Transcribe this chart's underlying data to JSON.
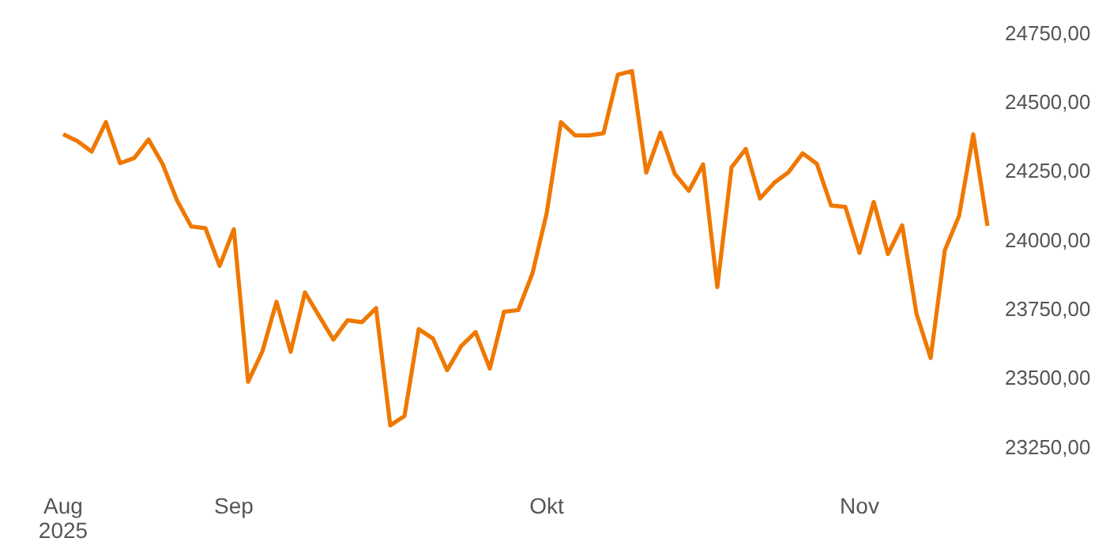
{
  "chart_data": {
    "type": "line",
    "categories": [
      "Aug 2025",
      null,
      null,
      null,
      null,
      null,
      null,
      null,
      null,
      null,
      null,
      null,
      "Sep",
      null,
      null,
      null,
      null,
      null,
      null,
      null,
      null,
      null,
      null,
      null,
      null,
      null,
      null,
      null,
      null,
      null,
      null,
      null,
      null,
      null,
      "Okt",
      null,
      null,
      null,
      null,
      null,
      null,
      null,
      null,
      null,
      null,
      null,
      null,
      null,
      null,
      null,
      null,
      null,
      null,
      null,
      null,
      null,
      "Nov",
      null,
      null,
      null,
      null,
      null,
      null,
      null,
      null,
      null
    ],
    "series": [
      {
        "color": "#ef7800",
        "values": [
          24382,
          24357,
          24319,
          24426,
          24277,
          24296,
          24363,
          24273,
          24143,
          24048,
          24042,
          23905,
          24038,
          23485,
          23594,
          23775,
          23594,
          23809,
          23723,
          23638,
          23708,
          23701,
          23752,
          23327,
          23361,
          23676,
          23642,
          23527,
          23615,
          23665,
          23533,
          23739,
          23745,
          23878,
          24096,
          24426,
          24378,
          24378,
          24386,
          24598,
          24611,
          24243,
          24388,
          24239,
          24177,
          24273,
          23828,
          24262,
          24329,
          24149,
          24206,
          24244,
          24313,
          24275,
          24124,
          24119,
          23952,
          24137,
          23948,
          24052,
          23733,
          23571,
          23962,
          24086,
          24382,
          24050
        ]
      }
    ],
    "ylim": [
      23250,
      24750
    ],
    "yticks": [
      {
        "value": 23250,
        "label": "23250,00"
      },
      {
        "value": 23500,
        "label": "23500,00"
      },
      {
        "value": 23750,
        "label": "23750,00"
      },
      {
        "value": 24000,
        "label": "24000,00"
      },
      {
        "value": 24250,
        "label": "24250,00"
      },
      {
        "value": 24500,
        "label": "24500,00"
      },
      {
        "value": 24750,
        "label": "24750,00"
      }
    ],
    "grid": false,
    "marker": "none",
    "line_style": "solid"
  }
}
